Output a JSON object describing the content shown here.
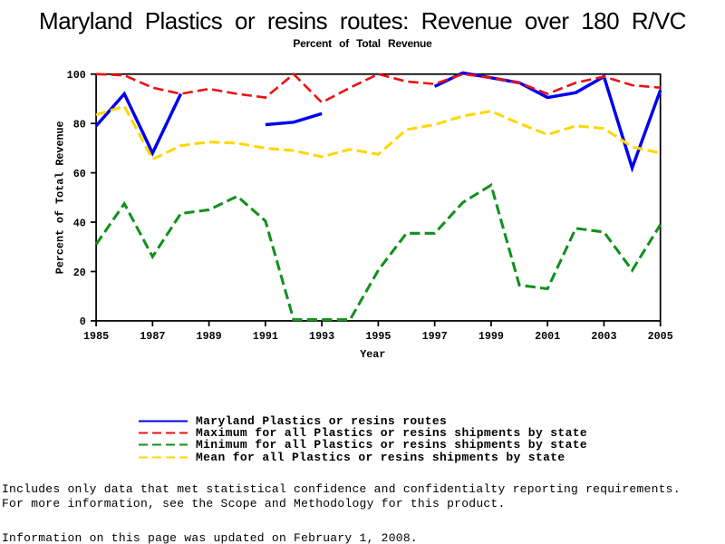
{
  "page": {
    "title": "Maryland Plastics or resins routes: Revenue over 180 R/VC",
    "subtitle": "Percent of Total Revenue",
    "footnote_line1": "Includes only data that met statistical confidence and confidentialty reporting requirements.",
    "footnote_line2": "For more information, see the Scope and Methodology for this product.",
    "updated_line": "Information on this page was updated on February 1, 2008."
  },
  "chart_data": {
    "type": "line",
    "title": "Maryland Plastics or resins routes: Revenue over 180 R/VC",
    "subtitle": "Percent of Total Revenue",
    "xlabel": "Year",
    "ylabel": "Percent of Total Revenue",
    "xlim": [
      1985,
      2005
    ],
    "ylim": [
      0,
      100
    ],
    "x_ticks": [
      1985,
      1987,
      1989,
      1991,
      1993,
      1995,
      1997,
      1999,
      2001,
      2003,
      2005
    ],
    "y_ticks": [
      0,
      20,
      40,
      60,
      80,
      100
    ],
    "grid": false,
    "legend_position": "bottom",
    "x": [
      1985,
      1986,
      1987,
      1988,
      1989,
      1990,
      1991,
      1992,
      1993,
      1994,
      1995,
      1996,
      1997,
      1998,
      1999,
      2000,
      2001,
      2002,
      2003,
      2004,
      2005
    ],
    "series": [
      {
        "name": "Maryland Plastics or resins routes",
        "color": "#0000ee",
        "dash": "solid",
        "width": 4,
        "values": [
          79,
          92,
          68,
          92,
          null,
          null,
          79.5,
          80.5,
          84,
          null,
          null,
          null,
          95,
          100.5,
          98.5,
          96.5,
          90.5,
          92.5,
          99,
          62,
          93.5
        ]
      },
      {
        "name": "Maximum for all Plastics or resins shipments by state",
        "color": "#ee1111",
        "dash": "dashed",
        "width": 3,
        "values": [
          100,
          99.5,
          94.5,
          92,
          94,
          92,
          90.5,
          100,
          88.5,
          94.5,
          100,
          97,
          96,
          100,
          98.5,
          96.5,
          92,
          96.5,
          99,
          95.5,
          94.5
        ]
      },
      {
        "name": "Minimum for all Plastics or resins shipments by state",
        "color": "#11901c",
        "dash": "dashed",
        "width": 3.5,
        "values": [
          31,
          47.5,
          26,
          43.5,
          45,
          50.5,
          40.5,
          0.5,
          0.5,
          0.5,
          20.5,
          35.5,
          35.5,
          48,
          55,
          14.5,
          13,
          37.5,
          36,
          20.5,
          39
        ]
      },
      {
        "name": "Mean for all Plastics or resins shipments by state",
        "color": "#ffd700",
        "dash": "dashed",
        "width": 3.5,
        "values": [
          83.5,
          87,
          65.5,
          71,
          72.5,
          72,
          70,
          69,
          66.5,
          69.5,
          67.5,
          77.5,
          79.5,
          83,
          85,
          80,
          75.5,
          79,
          78,
          70.5,
          68
        ]
      }
    ]
  }
}
